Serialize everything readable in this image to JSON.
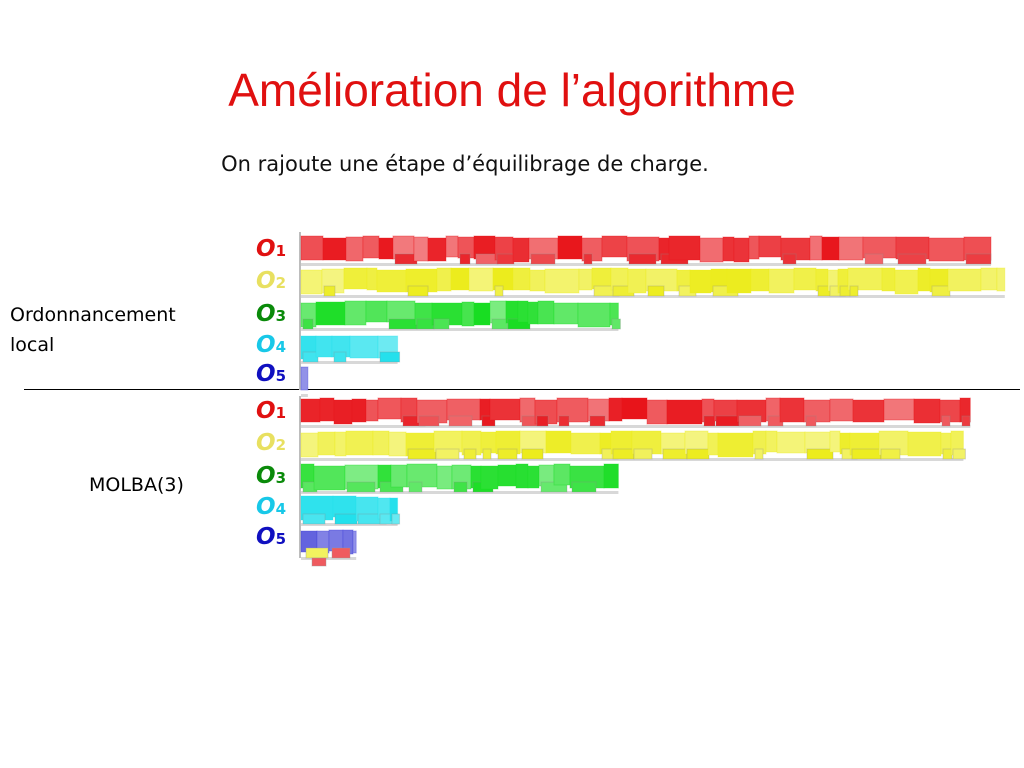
{
  "slide": {
    "title": "Amélioration de l’algorithme",
    "subtitle": "On rajoute une étape d’équilibrage de charge."
  },
  "sections": [
    {
      "label_lines": [
        "Ordonnancement",
        "local"
      ],
      "operators": [
        {
          "prefix": "O",
          "index": "1",
          "color": "#e01010",
          "fill": "#e8141a",
          "load": 1.0
        },
        {
          "prefix": "O",
          "index": "2",
          "color": "#e8e060",
          "fill": "#ecec1a",
          "load": 1.02
        },
        {
          "prefix": "O",
          "index": "3",
          "color": "#0a8a0a",
          "fill": "#18dd22",
          "load": 0.46
        },
        {
          "prefix": "O",
          "index": "4",
          "color": "#18c8e8",
          "fill": "#22e0ec",
          "load": 0.14
        },
        {
          "prefix": "O",
          "index": "5",
          "color": "#1010c0",
          "fill": "#3b3bd6",
          "load": 0.01
        }
      ]
    },
    {
      "label_lines": [
        "MOLBA(3)"
      ],
      "operators": [
        {
          "prefix": "O",
          "index": "1",
          "color": "#e01010",
          "fill": "#e8141a",
          "load": 0.97
        },
        {
          "prefix": "O",
          "index": "2",
          "color": "#e8e060",
          "fill": "#ecec1a",
          "load": 0.96
        },
        {
          "prefix": "O",
          "index": "3",
          "color": "#0a8a0a",
          "fill": "#18dd22",
          "load": 0.46
        },
        {
          "prefix": "O",
          "index": "4",
          "color": "#18c8e8",
          "fill": "#22e0ec",
          "load": 0.14
        },
        {
          "prefix": "O",
          "index": "5",
          "color": "#1010c0",
          "fill": "#3b3bd6",
          "load": 0.08
        }
      ]
    }
  ]
}
